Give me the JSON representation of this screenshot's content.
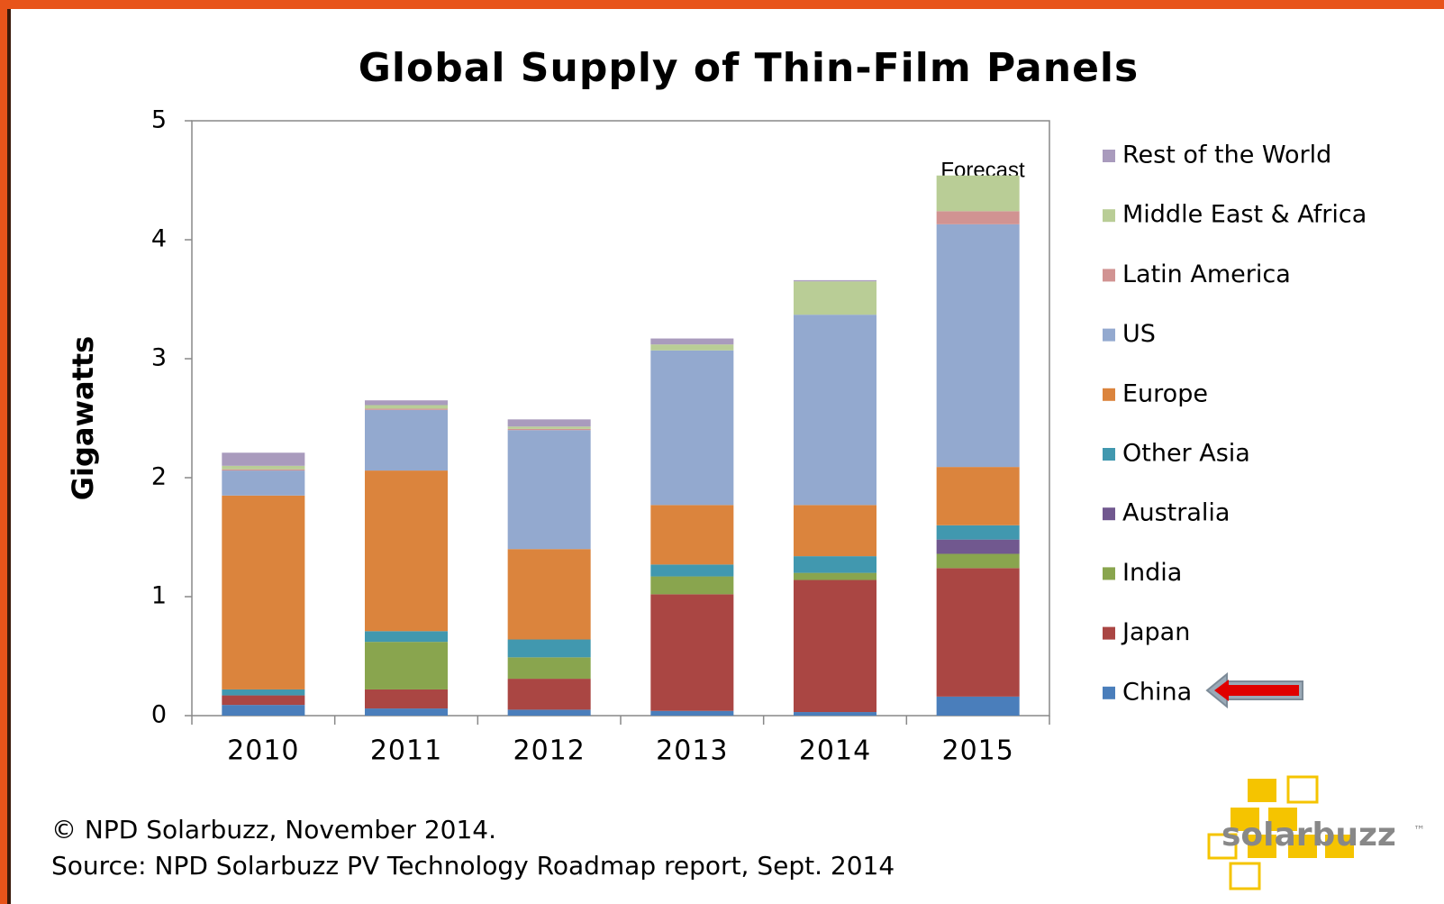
{
  "chart_data": {
    "type": "stacked_bar",
    "title": "Global Supply of Thin-Film Panels",
    "y_label": "Gigawatts",
    "annotation": "Forecast",
    "categories": [
      "2010",
      "2011",
      "2012",
      "2013",
      "2014",
      "2015"
    ],
    "series": [
      {
        "name": "China",
        "color": "#4a7ebb",
        "values": [
          0.09,
          0.06,
          0.05,
          0.04,
          0.03,
          0.16
        ]
      },
      {
        "name": "Japan",
        "color": "#aa4643",
        "values": [
          0.08,
          0.16,
          0.26,
          0.98,
          1.11,
          1.08
        ]
      },
      {
        "name": "India",
        "color": "#89a54e",
        "values": [
          0,
          0.4,
          0.18,
          0.15,
          0.06,
          0.12
        ]
      },
      {
        "name": "Australia",
        "color": "#71588f",
        "values": [
          0,
          0,
          0,
          0,
          0,
          0.12
        ]
      },
      {
        "name": "Other Asia",
        "color": "#4198af",
        "values": [
          0.05,
          0.09,
          0.15,
          0.1,
          0.14,
          0.12
        ]
      },
      {
        "name": "Europe",
        "color": "#db843d",
        "values": [
          1.63,
          1.35,
          0.76,
          0.5,
          0.43,
          0.49
        ]
      },
      {
        "name": "US",
        "color": "#93a9cf",
        "values": [
          0.21,
          0.51,
          1.0,
          1.3,
          1.6,
          2.04
        ]
      },
      {
        "name": "Latin America",
        "color": "#d19392",
        "values": [
          0.01,
          0.01,
          0.01,
          0,
          0,
          0.11
        ]
      },
      {
        "name": "Middle East & Africa",
        "color": "#b9cd96",
        "values": [
          0.03,
          0.03,
          0.02,
          0.05,
          0.28,
          0.3
        ]
      },
      {
        "name": "Rest of the World",
        "color": "#a99bbd",
        "values": [
          0.11,
          0.04,
          0.06,
          0.05,
          0.01,
          0
        ]
      }
    ],
    "ylim": [
      0,
      5
    ],
    "yticks": [
      0,
      1,
      2,
      3,
      4,
      5
    ],
    "legend": "right"
  },
  "footer": [
    "© NPD Solarbuzz, November 2014.",
    "Source: NPD Solarbuzz PV Technology Roadmap report, Sept. 2014"
  ],
  "logo": {
    "text": "solarbuzz",
    "mark": "™"
  }
}
